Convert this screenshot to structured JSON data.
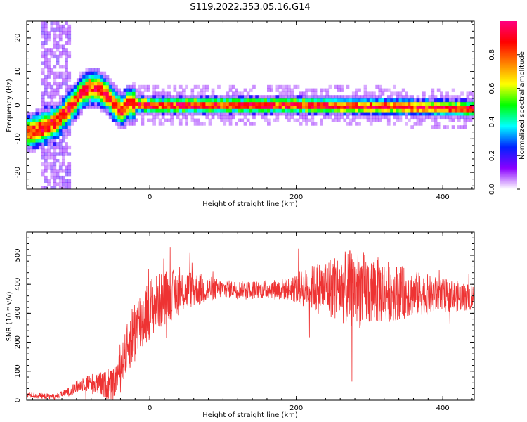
{
  "title": "S119.2022.353.05.16.G14",
  "chart_data": [
    {
      "type": "heatmap",
      "xlabel": "Height of straight line (km)",
      "ylabel": "Frequency (Hz)",
      "xlim": [
        -168,
        443
      ],
      "ylim": [
        -25,
        25
      ],
      "xticks": [
        "0",
        "200",
        "400"
      ],
      "yticks": [
        "-20",
        "-10",
        "0",
        "10",
        "20"
      ],
      "ridge": [
        {
          "x": -168,
          "y": -8
        },
        {
          "x": -150,
          "y": -7
        },
        {
          "x": -130,
          "y": -5
        },
        {
          "x": -112,
          "y": -1
        },
        {
          "x": -98,
          "y": 3
        },
        {
          "x": -85,
          "y": 5.5
        },
        {
          "x": -72,
          "y": 5
        },
        {
          "x": -60,
          "y": 3
        },
        {
          "x": -50,
          "y": 0
        },
        {
          "x": -40,
          "y": -1.5
        },
        {
          "x": -30,
          "y": 0.5
        },
        {
          "x": 0,
          "y": 0
        },
        {
          "x": 200,
          "y": 0
        },
        {
          "x": 350,
          "y": -0.5
        },
        {
          "x": 443,
          "y": -1
        }
      ],
      "colorbar": {
        "label": "Normalized spectral amplitude",
        "range": [
          0,
          1
        ],
        "ticks": [
          "0.0",
          "0.2",
          "0.4",
          "0.6",
          "0.8"
        ],
        "colors": [
          "#ffffff",
          "#8a00ff",
          "#0022ff",
          "#00ffff",
          "#00ff00",
          "#ffff00",
          "#ff8000",
          "#ff0000",
          "#ff0080"
        ]
      }
    },
    {
      "type": "line",
      "xlabel": "Height of straight line (km)",
      "ylabel": "SNR (10 * v/v)",
      "xlim": [
        -168,
        443
      ],
      "ylim": [
        0,
        580
      ],
      "xticks": [
        "0",
        "200",
        "400"
      ],
      "yticks": [
        "0",
        "100",
        "200",
        "300",
        "400",
        "500"
      ],
      "color": "#ee3333",
      "envelope": [
        {
          "x": -168,
          "y": 18
        },
        {
          "x": -130,
          "y": 12
        },
        {
          "x": -110,
          "y": 30
        },
        {
          "x": -90,
          "y": 60
        },
        {
          "x": -70,
          "y": 55
        },
        {
          "x": -50,
          "y": 50
        },
        {
          "x": -40,
          "y": 110
        },
        {
          "x": -25,
          "y": 220
        },
        {
          "x": 0,
          "y": 320
        },
        {
          "x": 25,
          "y": 360
        },
        {
          "x": 50,
          "y": 380
        },
        {
          "x": 100,
          "y": 385
        },
        {
          "x": 150,
          "y": 380
        },
        {
          "x": 200,
          "y": 385
        },
        {
          "x": 250,
          "y": 390
        },
        {
          "x": 300,
          "y": 380
        },
        {
          "x": 350,
          "y": 370
        },
        {
          "x": 400,
          "y": 360
        },
        {
          "x": 443,
          "y": 355
        }
      ],
      "noise": [
        {
          "x": -168,
          "y": 10
        },
        {
          "x": -120,
          "y": 10
        },
        {
          "x": -80,
          "y": 35
        },
        {
          "x": -40,
          "y": 60
        },
        {
          "x": -20,
          "y": 120
        },
        {
          "x": 40,
          "y": 80
        },
        {
          "x": 100,
          "y": 30
        },
        {
          "x": 150,
          "y": 30
        },
        {
          "x": 190,
          "y": 40
        },
        {
          "x": 230,
          "y": 90
        },
        {
          "x": 280,
          "y": 140
        },
        {
          "x": 320,
          "y": 110
        },
        {
          "x": 360,
          "y": 80
        },
        {
          "x": 400,
          "y": 60
        },
        {
          "x": 443,
          "y": 45
        }
      ]
    }
  ]
}
